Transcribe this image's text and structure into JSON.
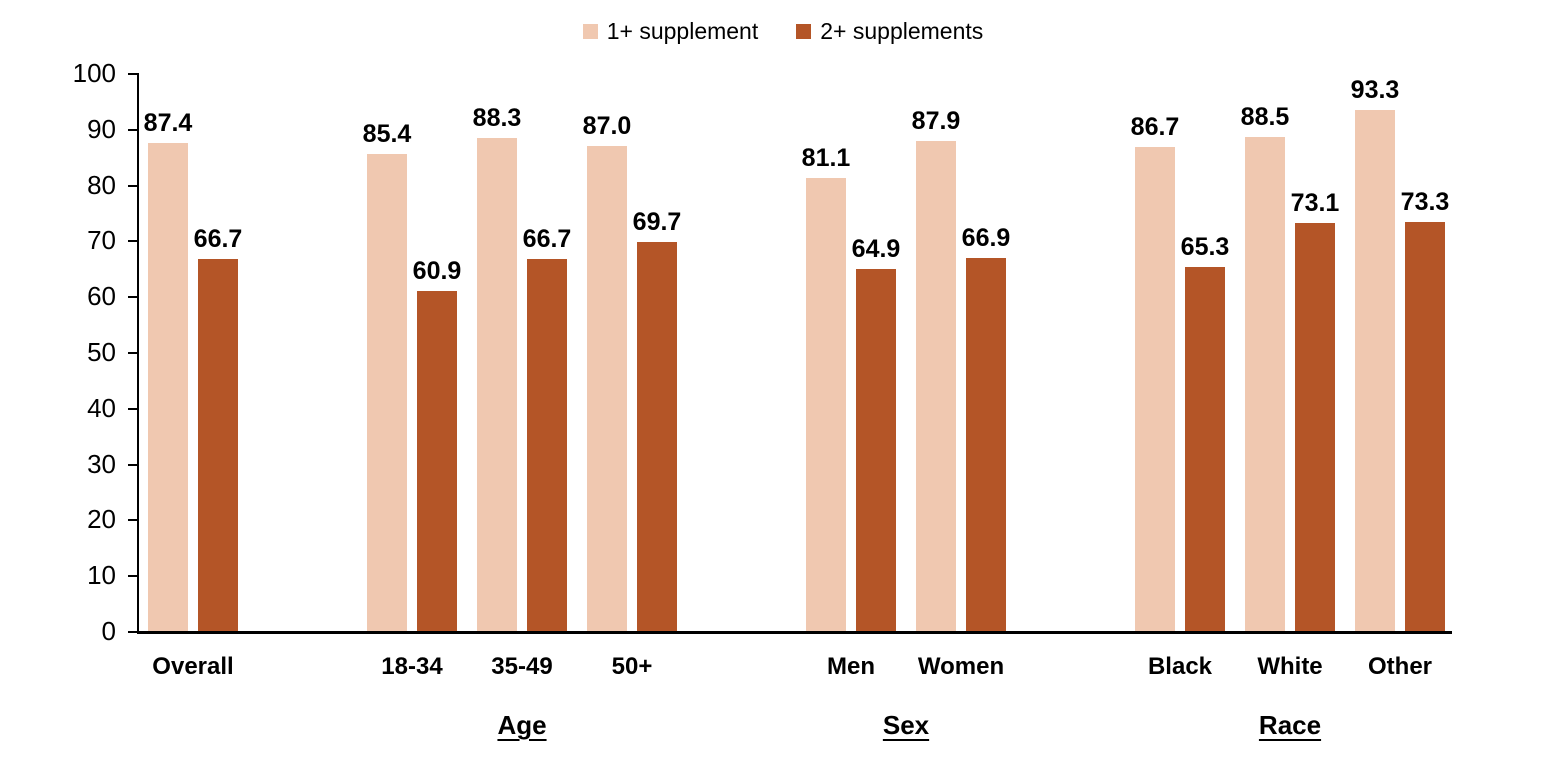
{
  "colors": {
    "background": "#FFFFFF",
    "axis": "#000000",
    "text": "#000000",
    "series_1": "#F0C8B0",
    "series_2": "#B45527"
  },
  "chart_data": {
    "type": "bar",
    "title": "",
    "xlabel": "",
    "ylabel": "",
    "ylim": [
      0,
      100
    ],
    "ytick_step": 10,
    "ytick_labels": [
      "0",
      "10",
      "20",
      "30",
      "40",
      "50",
      "60",
      "70",
      "80",
      "90",
      "100"
    ],
    "grid": false,
    "legend_position": "top-center",
    "value_label_decimals": 1,
    "series": [
      {
        "name": "1+ supplement",
        "color": "#F0C8B0"
      },
      {
        "name": "2+ supplements",
        "color": "#B45527"
      }
    ],
    "groups": [
      {
        "label": "",
        "items": [
          {
            "category": "Overall",
            "values": [
              87.4,
              66.7
            ]
          }
        ]
      },
      {
        "label": "Age",
        "items": [
          {
            "category": "18-34",
            "values": [
              85.4,
              60.9
            ]
          },
          {
            "category": "35-49",
            "values": [
              88.3,
              66.7
            ]
          },
          {
            "category": "50+",
            "values": [
              87.0,
              69.7
            ]
          }
        ]
      },
      {
        "label": "Sex",
        "items": [
          {
            "category": "Men",
            "values": [
              81.1,
              64.9
            ]
          },
          {
            "category": "Women",
            "values": [
              87.9,
              66.9
            ]
          }
        ]
      },
      {
        "label": "Race",
        "items": [
          {
            "category": "Black",
            "values": [
              86.7,
              65.3
            ]
          },
          {
            "category": "White",
            "values": [
              88.5,
              73.1
            ]
          },
          {
            "category": "Other",
            "values": [
              93.3,
              73.3
            ]
          }
        ]
      }
    ]
  }
}
